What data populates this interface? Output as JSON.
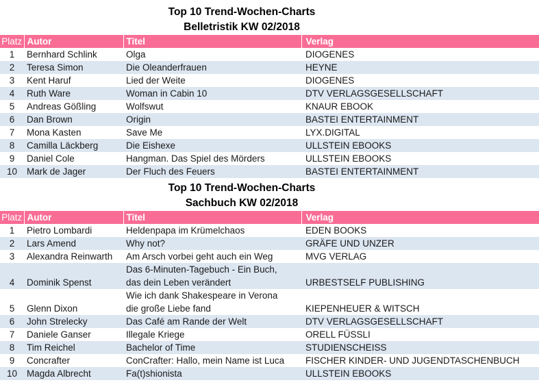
{
  "colors": {
    "header_bg": "#F96D95",
    "header_text": "#FFFFFF",
    "row_alt_bg": "#DCE6F1",
    "body_text": "#1A1A1A",
    "title_text": "#000000"
  },
  "tables": [
    {
      "title_line1": "Top 10 Trend-Wochen-Charts",
      "title_line2": "Belletristik KW 02/2018",
      "columns": [
        "Platz",
        "Autor",
        "Titel",
        "Verlag"
      ],
      "rows": [
        {
          "platz": "1",
          "autor": "Bernhard Schlink",
          "titel": "Olga",
          "verlag": "DIOGENES"
        },
        {
          "platz": "2",
          "autor": "Teresa Simon",
          "titel": "Die Oleanderfrauen",
          "verlag": "HEYNE"
        },
        {
          "platz": "3",
          "autor": "Kent Haruf",
          "titel": "Lied der Weite",
          "verlag": "DIOGENES"
        },
        {
          "platz": "4",
          "autor": "Ruth Ware",
          "titel": "Woman in Cabin 10",
          "verlag": "DTV VERLAGSGESELLSCHAFT"
        },
        {
          "platz": "5",
          "autor": "Andreas Gößling",
          "titel": "Wolfswut",
          "verlag": "KNAUR EBOOK"
        },
        {
          "platz": "6",
          "autor": "Dan Brown",
          "titel": "Origin",
          "verlag": "BASTEI ENTERTAINMENT"
        },
        {
          "platz": "7",
          "autor": "Mona Kasten",
          "titel": "Save Me",
          "verlag": "LYX.DIGITAL"
        },
        {
          "platz": "8",
          "autor": "Camilla Läckberg",
          "titel": "Die Eishexe",
          "verlag": "ULLSTEIN EBOOKS"
        },
        {
          "platz": "9",
          "autor": "Daniel Cole",
          "titel": "Hangman. Das Spiel des Mörders",
          "verlag": "ULLSTEIN EBOOKS"
        },
        {
          "platz": "10",
          "autor": "Mark de Jager",
          "titel": "Der Fluch des Feuers",
          "verlag": "BASTEI ENTERTAINMENT"
        }
      ]
    },
    {
      "title_line1": "Top 10 Trend-Wochen-Charts",
      "title_line2": "Sachbuch KW 02/2018",
      "columns": [
        "Platz",
        "Autor",
        "Titel",
        "Verlag"
      ],
      "rows": [
        {
          "platz": "1",
          "autor": "Pietro Lombardi",
          "titel": "Heldenpapa im Krümelchaos",
          "verlag": "EDEN BOOKS"
        },
        {
          "platz": "2",
          "autor": "Lars Amend",
          "titel": "Why not?",
          "verlag": "GRÄFE UND UNZER"
        },
        {
          "platz": "3",
          "autor": "Alexandra Reinwarth",
          "titel": "Am Arsch vorbei geht auch ein Weg",
          "verlag": "MVG VERLAG"
        },
        {
          "platz": "4",
          "autor": "Dominik Spenst",
          "titel": "Das 6-Minuten-Tagebuch - Ein Buch,\ndas dein Leben verändert",
          "verlag": "URBESTSELF PUBLISHING"
        },
        {
          "platz": "5",
          "autor": "Glenn Dixon",
          "titel": "Wie ich dank Shakespeare in Verona\ndie große Liebe fand",
          "verlag": "KIEPENHEUER & WITSCH"
        },
        {
          "platz": "6",
          "autor": "John Strelecky",
          "titel": "Das Café am Rande der Welt",
          "verlag": "DTV VERLAGSGESELLSCHAFT"
        },
        {
          "platz": "7",
          "autor": "Daniele Ganser",
          "titel": "Illegale Kriege",
          "verlag": "ORELL FÜSSLI"
        },
        {
          "platz": "8",
          "autor": "Tim Reichel",
          "titel": "Bachelor of Time",
          "verlag": "STUDIENSCHEISS"
        },
        {
          "platz": "9",
          "autor": "Concrafter",
          "titel": "ConCrafter: Hallo, mein Name ist Luca",
          "verlag": "FISCHER KINDER- UND JUGENDTASCHENBUCH"
        },
        {
          "platz": "10",
          "autor": "Magda Albrecht",
          "titel": "Fa(t)shionista",
          "verlag": "ULLSTEIN EBOOKS"
        }
      ]
    }
  ]
}
